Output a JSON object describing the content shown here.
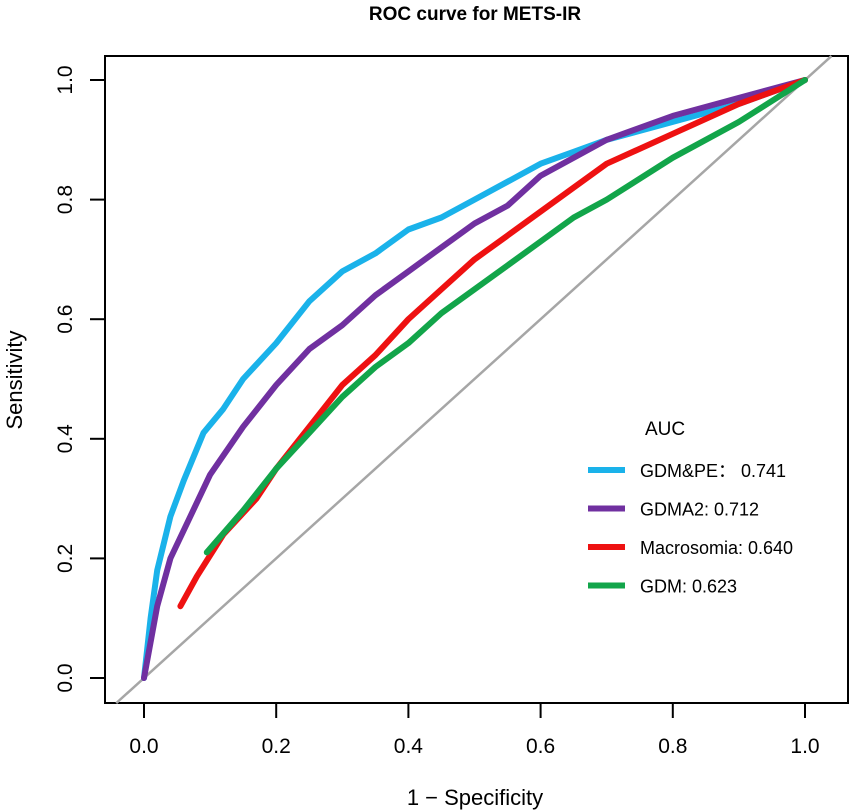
{
  "chart_data": {
    "type": "line",
    "title": "ROC curve for METS-IR",
    "xlabel": "1 − Specificity",
    "ylabel": "Sensitivity",
    "xlim": [
      -0.06,
      1.065
    ],
    "ylim": [
      -0.042,
      1.04
    ],
    "xticks": [
      "0.0",
      "0.2",
      "0.4",
      "0.6",
      "0.8",
      "1.0"
    ],
    "yticks": [
      "0.0",
      "0.2",
      "0.4",
      "0.6",
      "0.8",
      "1.0"
    ],
    "grid": false,
    "legend": {
      "title": "AUC",
      "position": "bottom-right"
    },
    "reference_line": {
      "color": "#a6a6a6",
      "slope": 1,
      "intercept": 0
    },
    "series": [
      {
        "name": "GDM&PE： 0.741",
        "color": "#1ab2ea",
        "x": [
          0,
          0.01,
          0.02,
          0.04,
          0.06,
          0.09,
          0.12,
          0.15,
          0.2,
          0.25,
          0.3,
          0.35,
          0.4,
          0.45,
          0.5,
          0.55,
          0.6,
          0.65,
          0.7,
          0.8,
          0.9,
          1
        ],
        "y": [
          0,
          0.1,
          0.18,
          0.27,
          0.33,
          0.41,
          0.45,
          0.5,
          0.56,
          0.63,
          0.68,
          0.71,
          0.75,
          0.77,
          0.8,
          0.83,
          0.86,
          0.88,
          0.9,
          0.93,
          0.96,
          1
        ]
      },
      {
        "name": "GDMA2: 0.712",
        "color": "#7030a0",
        "x": [
          0,
          0.02,
          0.04,
          0.07,
          0.1,
          0.15,
          0.2,
          0.25,
          0.3,
          0.35,
          0.4,
          0.45,
          0.5,
          0.55,
          0.6,
          0.65,
          0.7,
          0.75,
          0.8,
          0.9,
          1
        ],
        "y": [
          0,
          0.12,
          0.2,
          0.27,
          0.34,
          0.42,
          0.49,
          0.55,
          0.59,
          0.64,
          0.68,
          0.72,
          0.76,
          0.79,
          0.84,
          0.87,
          0.9,
          0.92,
          0.94,
          0.97,
          1
        ]
      },
      {
        "name": "Macrosomia: 0.640",
        "color": "#ee1111",
        "x": [
          0.055,
          0.08,
          0.12,
          0.17,
          0.2,
          0.25,
          0.3,
          0.35,
          0.4,
          0.45,
          0.5,
          0.55,
          0.6,
          0.65,
          0.7,
          0.8,
          0.9,
          1
        ],
        "y": [
          0.12,
          0.17,
          0.24,
          0.3,
          0.35,
          0.42,
          0.49,
          0.54,
          0.6,
          0.65,
          0.7,
          0.74,
          0.78,
          0.82,
          0.86,
          0.91,
          0.96,
          1
        ]
      },
      {
        "name": "GDM: 0.623",
        "color": "#12a54a",
        "x": [
          0.095,
          0.15,
          0.2,
          0.25,
          0.3,
          0.35,
          0.4,
          0.45,
          0.5,
          0.55,
          0.6,
          0.65,
          0.7,
          0.8,
          0.9,
          1
        ],
        "y": [
          0.21,
          0.28,
          0.35,
          0.41,
          0.47,
          0.52,
          0.56,
          0.61,
          0.65,
          0.69,
          0.73,
          0.77,
          0.8,
          0.87,
          0.93,
          1
        ]
      }
    ]
  }
}
